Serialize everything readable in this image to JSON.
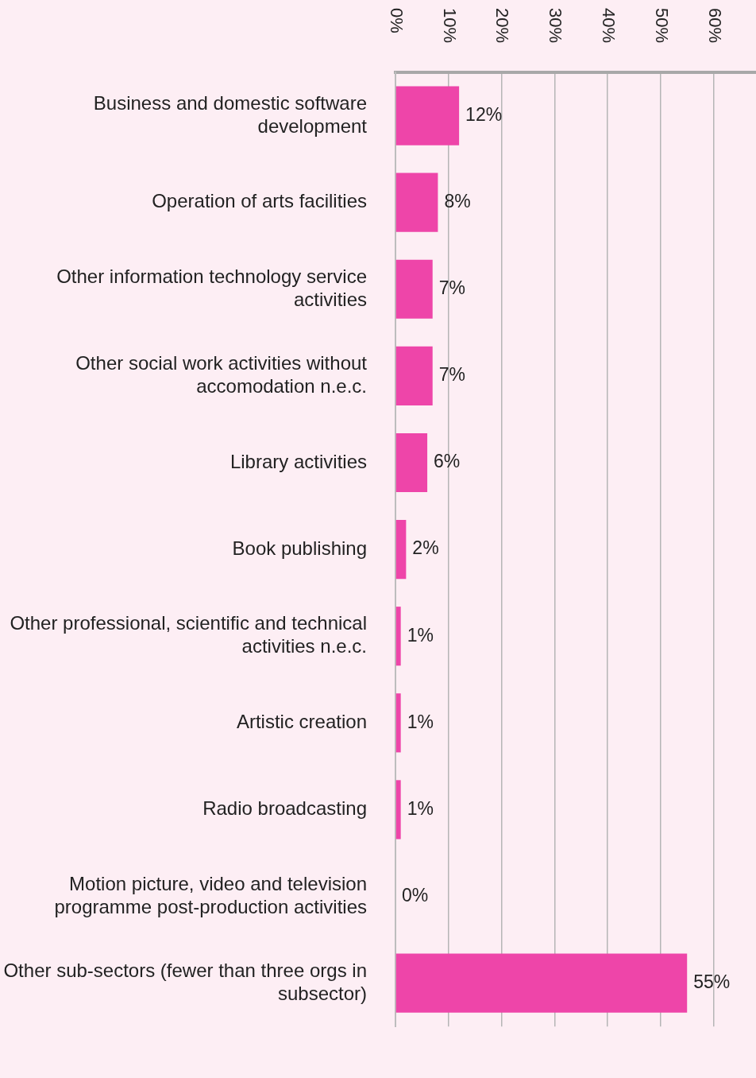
{
  "chart_data": {
    "type": "bar",
    "orientation": "horizontal",
    "categories": [
      "Business and domestic software development",
      "Operation of arts facilities",
      "Other information technology service activities",
      "Other social work activities without accomodation n.e.c.",
      "Library activities",
      "Book publishing",
      "Other professional, scientific and technical activities n.e.c.",
      "Artistic creation",
      "Radio broadcasting",
      "Motion picture, video and television programme post-production activities",
      "Other sub-sectors (fewer than three orgs in subsector)"
    ],
    "values": [
      12,
      8,
      7,
      7,
      6,
      2,
      1,
      1,
      1,
      0,
      55
    ],
    "color": "#ee45a9",
    "xlim": [
      0,
      68
    ],
    "xticks": [
      {
        "value": 0,
        "label": "0%"
      },
      {
        "value": 10,
        "label": "10%"
      },
      {
        "value": 20,
        "label": "20%"
      },
      {
        "value": 30,
        "label": "30%"
      },
      {
        "value": 40,
        "label": "40%"
      },
      {
        "value": 50,
        "label": "50%"
      },
      {
        "value": 60,
        "label": "60%"
      }
    ],
    "value_labels": [
      "12%",
      "8%",
      "7%",
      "7%",
      "6%",
      "2%",
      "1%",
      "1%",
      "1%",
      "0%",
      "55%"
    ],
    "grid": "x",
    "legend": false
  }
}
